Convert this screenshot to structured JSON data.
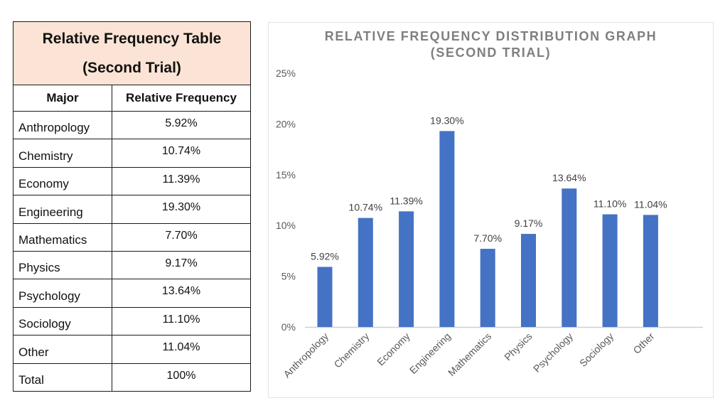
{
  "table": {
    "title_line1": "Relative Frequency Table",
    "title_line2": "(Second Trial)",
    "header_major": "Major",
    "header_freq": "Relative Frequency",
    "rows": [
      {
        "major": "Anthropology",
        "freq": "5.92%"
      },
      {
        "major": "Chemistry",
        "freq": "10.74%"
      },
      {
        "major": "Economy",
        "freq": "11.39%"
      },
      {
        "major": "Engineering",
        "freq": "19.30%"
      },
      {
        "major": "Mathematics",
        "freq": "7.70%"
      },
      {
        "major": "Physics",
        "freq": "9.17%"
      },
      {
        "major": "Psychology",
        "freq": "13.64%"
      },
      {
        "major": "Sociology",
        "freq": "11.10%"
      },
      {
        "major": "Other",
        "freq": "11.04%"
      }
    ],
    "total_label": "Total",
    "total_value": "100%",
    "title_bg": "#fbe4d5"
  },
  "chart_data": {
    "type": "bar",
    "title_line1": "RELATIVE FREQUENCY DISTRIBUTION GRAPH",
    "title_line2": "(SECOND TRIAL)",
    "categories": [
      "Anthropology",
      "Chemistry",
      "Economy",
      "Engineering",
      "Mathematics",
      "Physics",
      "Psychology",
      "Sociology",
      "Other"
    ],
    "values": [
      5.92,
      10.74,
      11.39,
      19.3,
      7.7,
      9.17,
      13.64,
      11.1,
      11.04
    ],
    "data_labels": [
      "5.92%",
      "10.74%",
      "11.39%",
      "19.30%",
      "7.70%",
      "9.17%",
      "13.64%",
      "11.10%",
      "11.04%"
    ],
    "ylim": [
      0,
      25
    ],
    "yticks": [
      0,
      5,
      10,
      15,
      20,
      25
    ],
    "ytick_labels": [
      "0%",
      "5%",
      "10%",
      "15%",
      "20%",
      "25%"
    ],
    "xlabel": "",
    "ylabel": "",
    "grid": false,
    "bar_color": "#4472c4"
  }
}
